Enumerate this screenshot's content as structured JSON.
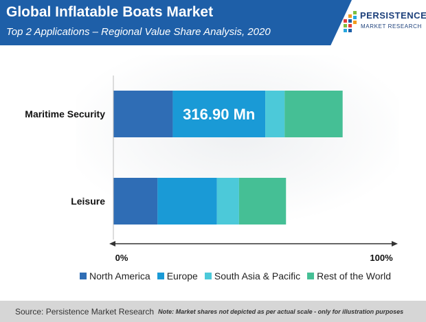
{
  "header": {
    "title": "Global Inflatable Boats Market",
    "subtitle": "Top 2 Applications – Regional Value Share Analysis, 2020"
  },
  "logo": {
    "name": "PERSISTENCE",
    "tagline": "MARKET RESEARCH"
  },
  "chart_data": {
    "type": "bar",
    "orientation": "horizontal",
    "stacked": true,
    "categories": [
      "Maritime Security",
      "Leisure"
    ],
    "series": [
      {
        "name": "North America",
        "color": "#2f6db5",
        "values": [
          21.5,
          16.0
        ]
      },
      {
        "name": "Europe",
        "color": "#1a9ad6",
        "values": [
          33.5,
          21.5
        ]
      },
      {
        "name": "South Asia & Pacific",
        "color": "#4cc9d9",
        "values": [
          7.0,
          8.0
        ]
      },
      {
        "name": "Rest of the World",
        "color": "#45bf95",
        "values": [
          21.0,
          17.0
        ]
      }
    ],
    "annotation": {
      "category": "Maritime Security",
      "series": "Europe",
      "text": "316.90 Mn"
    },
    "xlim": [
      0,
      100
    ],
    "x_tick_labels": [
      "0%",
      "100%"
    ],
    "legend_position": "bottom",
    "grid": false
  },
  "footer": {
    "source": "Source: Persistence Market Research",
    "note": "Note: Market shares not depicted as per actual scale - only for illustration purposes"
  }
}
